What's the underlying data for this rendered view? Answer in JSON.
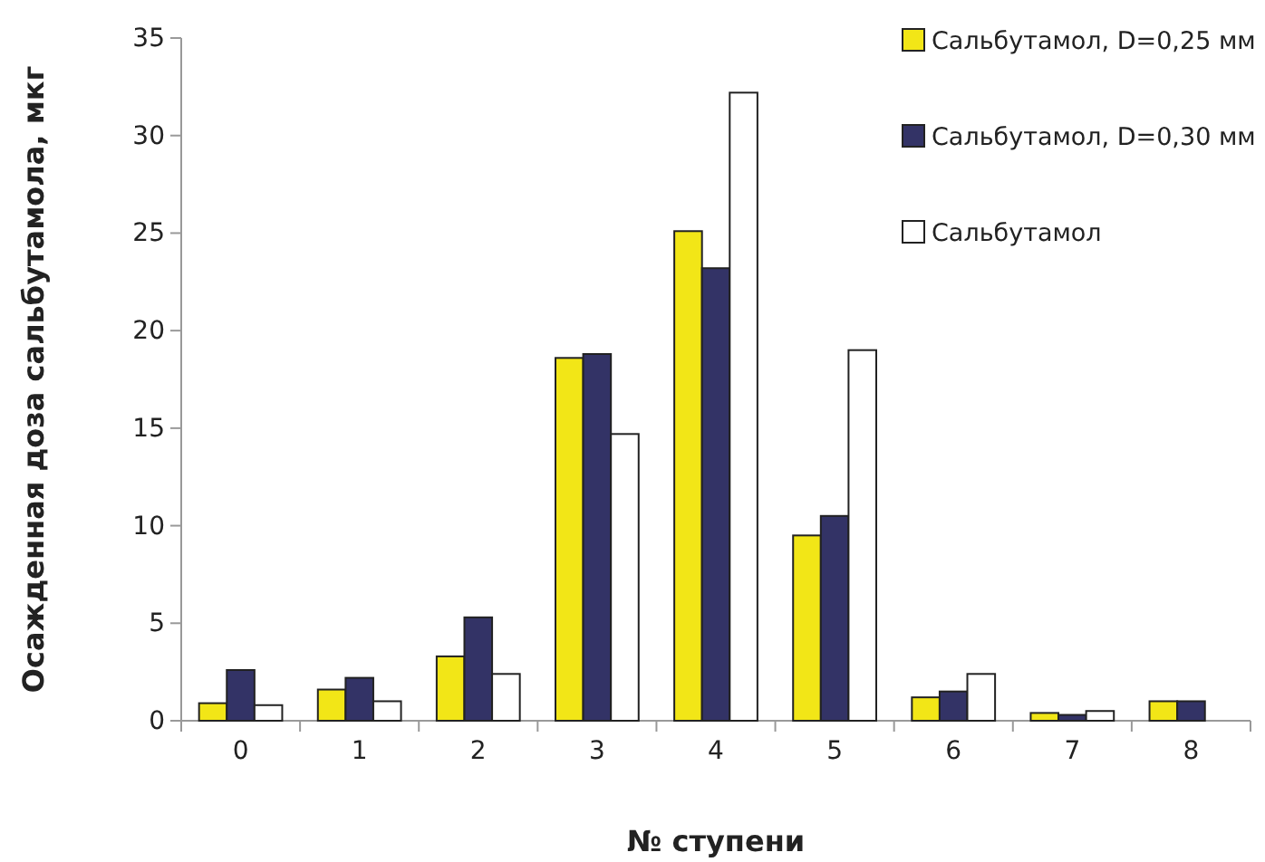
{
  "chart_data": {
    "type": "bar",
    "xlabel": "№ ступени",
    "ylabel": "Осажденная доза сальбутамола, мкг",
    "categories": [
      "0",
      "1",
      "2",
      "3",
      "4",
      "5",
      "6",
      "7",
      "8"
    ],
    "series": [
      {
        "name": "Сальбутамол, D=0,25 мм",
        "color": "#f2e617",
        "values": [
          0.9,
          1.6,
          3.3,
          18.6,
          25.1,
          9.5,
          1.2,
          0.4,
          1.0
        ]
      },
      {
        "name": "Сальбутамол, D=0,30 мм",
        "color": "#333366",
        "values": [
          2.6,
          2.2,
          5.3,
          18.8,
          23.2,
          10.5,
          1.5,
          0.3,
          1.0
        ]
      },
      {
        "name": "Сальбутамол",
        "color": "#ffffff",
        "values": [
          0.8,
          1.0,
          2.4,
          14.7,
          32.2,
          19.0,
          2.4,
          0.5,
          null
        ]
      }
    ],
    "ylim": [
      0,
      35
    ],
    "yticks": [
      0,
      5,
      10,
      15,
      20,
      25,
      30,
      35
    ],
    "grid": false,
    "legend": "top right"
  }
}
